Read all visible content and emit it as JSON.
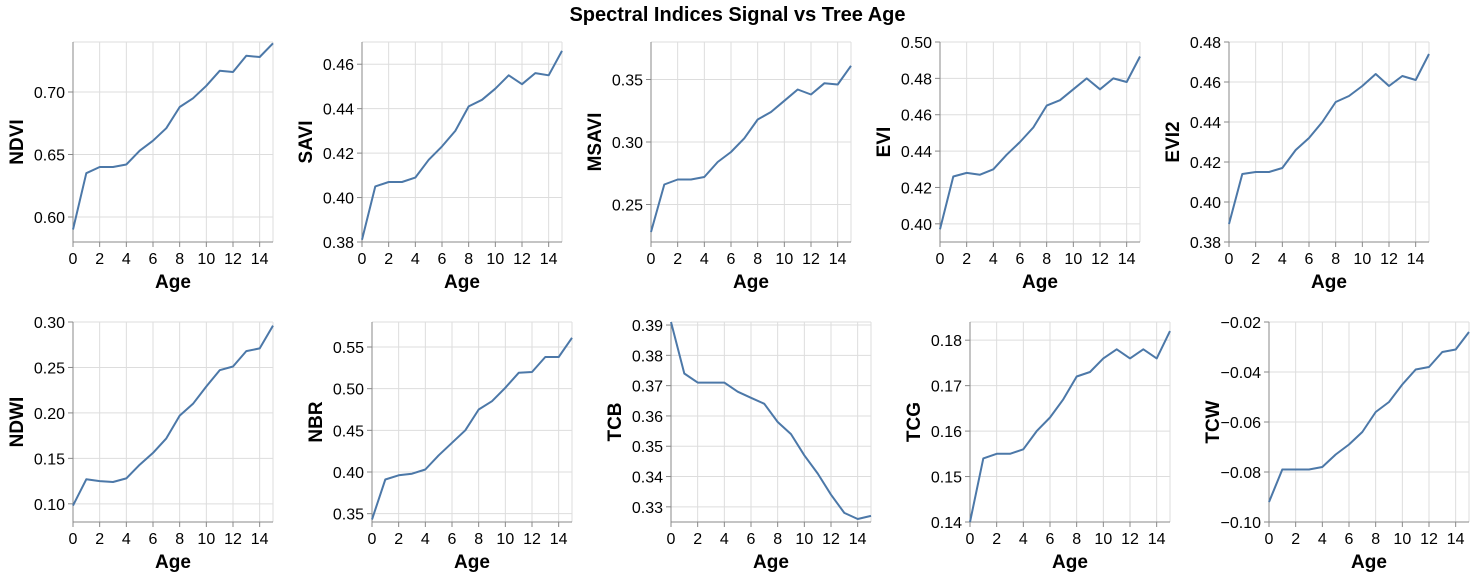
{
  "title": "Spectral Indices Signal vs Tree Age",
  "colors": {
    "line": "#4c78a8",
    "grid": "#dddddd",
    "axis": "#888888",
    "text": "#000000"
  },
  "chart_data": [
    {
      "type": "line",
      "title": "",
      "xlabel": "Age",
      "ylabel": "NDVI",
      "xlim": [
        0,
        15
      ],
      "ylim": [
        0.58,
        0.74
      ],
      "xticks": [
        0,
        2,
        4,
        6,
        8,
        10,
        12,
        14
      ],
      "yticks": [
        0.6,
        0.65,
        0.7
      ],
      "ytick_labels": [
        "0.60",
        "0.65",
        "0.70"
      ],
      "grid": true,
      "x": [
        0,
        1,
        2,
        3,
        4,
        5,
        6,
        7,
        8,
        9,
        10,
        11,
        12,
        13,
        14,
        15
      ],
      "y": [
        0.59,
        0.635,
        0.64,
        0.64,
        0.642,
        0.653,
        0.661,
        0.671,
        0.688,
        0.695,
        0.705,
        0.717,
        0.716,
        0.729,
        0.728,
        0.739
      ]
    },
    {
      "type": "line",
      "title": "",
      "xlabel": "Age",
      "ylabel": "SAVI",
      "xlim": [
        0,
        15
      ],
      "ylim": [
        0.38,
        0.47
      ],
      "xticks": [
        0,
        2,
        4,
        6,
        8,
        10,
        12,
        14
      ],
      "yticks": [
        0.38,
        0.4,
        0.42,
        0.44,
        0.46
      ],
      "ytick_labels": [
        "0.38",
        "0.40",
        "0.42",
        "0.44",
        "0.46"
      ],
      "grid": true,
      "x": [
        0,
        1,
        2,
        3,
        4,
        5,
        6,
        7,
        8,
        9,
        10,
        11,
        12,
        13,
        14,
        15
      ],
      "y": [
        0.381,
        0.405,
        0.407,
        0.407,
        0.409,
        0.417,
        0.423,
        0.43,
        0.441,
        0.444,
        0.449,
        0.455,
        0.451,
        0.456,
        0.455,
        0.466
      ]
    },
    {
      "type": "line",
      "title": "",
      "xlabel": "Age",
      "ylabel": "MSAVI",
      "xlim": [
        0,
        15
      ],
      "ylim": [
        0.22,
        0.38
      ],
      "xticks": [
        0,
        2,
        4,
        6,
        8,
        10,
        12,
        14
      ],
      "yticks": [
        0.25,
        0.3,
        0.35
      ],
      "ytick_labels": [
        "0.25",
        "0.30",
        "0.35"
      ],
      "grid": true,
      "x": [
        0,
        1,
        2,
        3,
        4,
        5,
        6,
        7,
        8,
        9,
        10,
        11,
        12,
        13,
        14,
        15
      ],
      "y": [
        0.228,
        0.266,
        0.27,
        0.27,
        0.272,
        0.284,
        0.292,
        0.303,
        0.318,
        0.324,
        0.333,
        0.342,
        0.338,
        0.347,
        0.346,
        0.361
      ]
    },
    {
      "type": "line",
      "title": "",
      "xlabel": "Age",
      "ylabel": "EVI",
      "xlim": [
        0,
        15
      ],
      "ylim": [
        0.39,
        0.5
      ],
      "xticks": [
        0,
        2,
        4,
        6,
        8,
        10,
        12,
        14
      ],
      "yticks": [
        0.4,
        0.42,
        0.44,
        0.46,
        0.48,
        0.5
      ],
      "ytick_labels": [
        "0.40",
        "0.42",
        "0.44",
        "0.46",
        "0.48",
        "0.50"
      ],
      "grid": true,
      "x": [
        0,
        1,
        2,
        3,
        4,
        5,
        6,
        7,
        8,
        9,
        10,
        11,
        12,
        13,
        14,
        15
      ],
      "y": [
        0.397,
        0.426,
        0.428,
        0.427,
        0.43,
        0.438,
        0.445,
        0.453,
        0.465,
        0.468,
        0.474,
        0.48,
        0.474,
        0.48,
        0.478,
        0.492
      ]
    },
    {
      "type": "line",
      "title": "",
      "xlabel": "Age",
      "ylabel": "EVI2",
      "xlim": [
        0,
        15
      ],
      "ylim": [
        0.38,
        0.48
      ],
      "xticks": [
        0,
        2,
        4,
        6,
        8,
        10,
        12,
        14
      ],
      "yticks": [
        0.38,
        0.4,
        0.42,
        0.44,
        0.46,
        0.48
      ],
      "ytick_labels": [
        "0.38",
        "0.40",
        "0.42",
        "0.44",
        "0.46",
        "0.48"
      ],
      "grid": true,
      "x": [
        0,
        1,
        2,
        3,
        4,
        5,
        6,
        7,
        8,
        9,
        10,
        11,
        12,
        13,
        14,
        15
      ],
      "y": [
        0.389,
        0.414,
        0.415,
        0.415,
        0.417,
        0.426,
        0.432,
        0.44,
        0.45,
        0.453,
        0.458,
        0.464,
        0.458,
        0.463,
        0.461,
        0.474
      ]
    },
    {
      "type": "line",
      "title": "",
      "xlabel": "Age",
      "ylabel": "NDWI",
      "xlim": [
        0,
        15
      ],
      "ylim": [
        0.08,
        0.3
      ],
      "xticks": [
        0,
        2,
        4,
        6,
        8,
        10,
        12,
        14
      ],
      "yticks": [
        0.1,
        0.15,
        0.2,
        0.25,
        0.3
      ],
      "ytick_labels": [
        "0.10",
        "0.15",
        "0.20",
        "0.25",
        "0.30"
      ],
      "grid": true,
      "x": [
        0,
        1,
        2,
        3,
        4,
        5,
        6,
        7,
        8,
        9,
        10,
        11,
        12,
        13,
        14,
        15
      ],
      "y": [
        0.098,
        0.127,
        0.125,
        0.124,
        0.128,
        0.143,
        0.156,
        0.172,
        0.197,
        0.21,
        0.229,
        0.247,
        0.251,
        0.268,
        0.271,
        0.296
      ]
    },
    {
      "type": "line",
      "title": "",
      "xlabel": "Age",
      "ylabel": "NBR",
      "xlim": [
        0,
        15
      ],
      "ylim": [
        0.34,
        0.58
      ],
      "xticks": [
        0,
        2,
        4,
        6,
        8,
        10,
        12,
        14
      ],
      "yticks": [
        0.35,
        0.4,
        0.45,
        0.5,
        0.55
      ],
      "ytick_labels": [
        "0.35",
        "0.40",
        "0.45",
        "0.50",
        "0.55"
      ],
      "grid": true,
      "x": [
        0,
        1,
        2,
        3,
        4,
        5,
        6,
        7,
        8,
        9,
        10,
        11,
        12,
        13,
        14,
        15
      ],
      "y": [
        0.343,
        0.391,
        0.396,
        0.398,
        0.403,
        0.42,
        0.435,
        0.45,
        0.475,
        0.485,
        0.501,
        0.519,
        0.52,
        0.538,
        0.538,
        0.561
      ]
    },
    {
      "type": "line",
      "title": "",
      "xlabel": "Age",
      "ylabel": "TCB",
      "xlim": [
        0,
        15
      ],
      "ylim": [
        0.325,
        0.391
      ],
      "xticks": [
        0,
        2,
        4,
        6,
        8,
        10,
        12,
        14
      ],
      "yticks": [
        0.33,
        0.34,
        0.35,
        0.36,
        0.37,
        0.38,
        0.39
      ],
      "ytick_labels": [
        "0.33",
        "0.34",
        "0.35",
        "0.36",
        "0.37",
        "0.38",
        "0.39"
      ],
      "grid": true,
      "x": [
        0,
        1,
        2,
        3,
        4,
        5,
        6,
        7,
        8,
        9,
        10,
        11,
        12,
        13,
        14,
        15
      ],
      "y": [
        0.391,
        0.374,
        0.371,
        0.371,
        0.371,
        0.368,
        0.366,
        0.364,
        0.358,
        0.354,
        0.347,
        0.341,
        0.334,
        0.328,
        0.326,
        0.327
      ]
    },
    {
      "type": "line",
      "title": "",
      "xlabel": "Age",
      "ylabel": "TCG",
      "xlim": [
        0,
        15
      ],
      "ylim": [
        0.14,
        0.184
      ],
      "xticks": [
        0,
        2,
        4,
        6,
        8,
        10,
        12,
        14
      ],
      "yticks": [
        0.14,
        0.15,
        0.16,
        0.17,
        0.18
      ],
      "ytick_labels": [
        "0.14",
        "0.15",
        "0.16",
        "0.17",
        "0.18"
      ],
      "grid": true,
      "x": [
        0,
        1,
        2,
        3,
        4,
        5,
        6,
        7,
        8,
        9,
        10,
        11,
        12,
        13,
        14,
        15
      ],
      "y": [
        0.14,
        0.154,
        0.155,
        0.155,
        0.156,
        0.16,
        0.163,
        0.167,
        0.172,
        0.173,
        0.176,
        0.178,
        0.176,
        0.178,
        0.176,
        0.182
      ]
    },
    {
      "type": "line",
      "title": "",
      "xlabel": "Age",
      "ylabel": "TCW",
      "xlim": [
        0,
        15
      ],
      "ylim": [
        -0.1,
        -0.02
      ],
      "xticks": [
        0,
        2,
        4,
        6,
        8,
        10,
        12,
        14
      ],
      "yticks": [
        -0.1,
        -0.08,
        -0.06,
        -0.04,
        -0.02
      ],
      "ytick_labels": [
        "−0.10",
        "−0.08",
        "−0.06",
        "−0.04",
        "−0.02"
      ],
      "grid": true,
      "x": [
        0,
        1,
        2,
        3,
        4,
        5,
        6,
        7,
        8,
        9,
        10,
        11,
        12,
        13,
        14,
        15
      ],
      "y": [
        -0.092,
        -0.079,
        -0.079,
        -0.079,
        -0.078,
        -0.073,
        -0.069,
        -0.064,
        -0.056,
        -0.052,
        -0.045,
        -0.039,
        -0.038,
        -0.032,
        -0.031,
        -0.024
      ]
    }
  ]
}
